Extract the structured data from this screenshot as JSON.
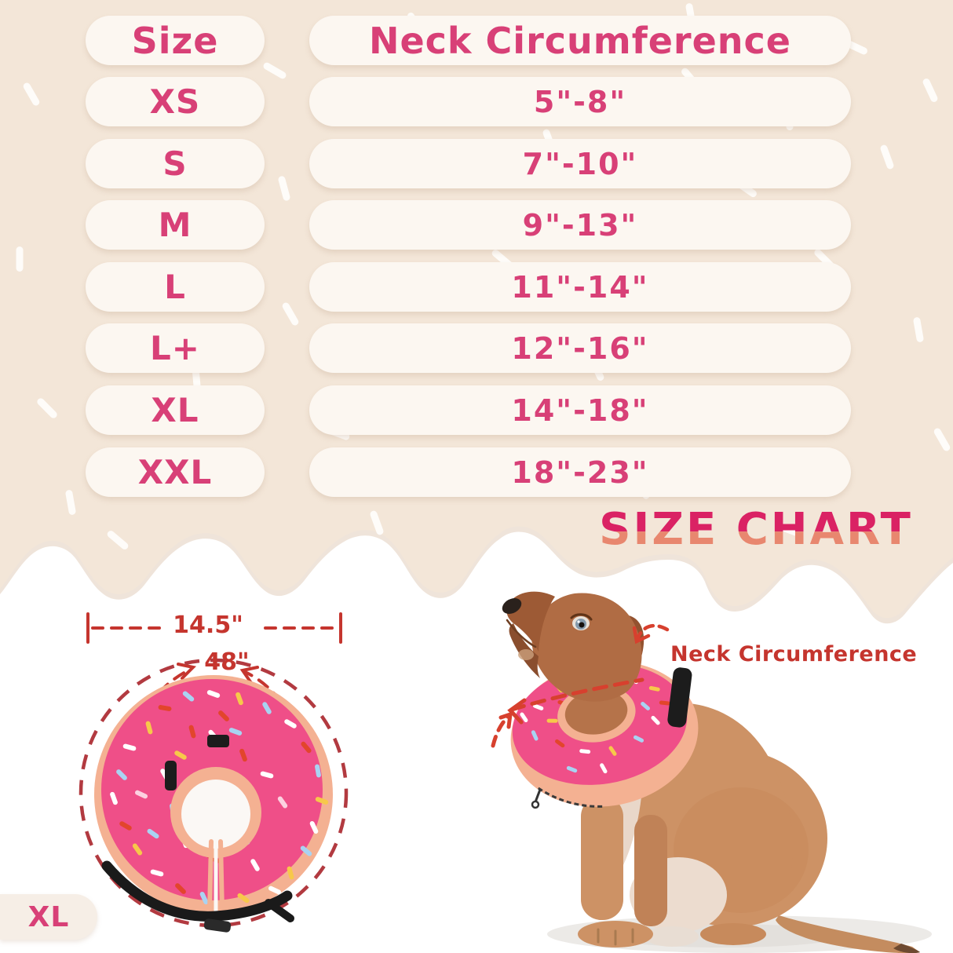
{
  "title": "SIZE CHART",
  "size_chart": {
    "headers": {
      "size": "Size",
      "neck": "Neck Circumference"
    },
    "rows": [
      {
        "size": "XS",
        "neck": "5\"-8\""
      },
      {
        "size": "S",
        "neck": "7\"-10\""
      },
      {
        "size": "M",
        "neck": "9\"-13\""
      },
      {
        "size": "L",
        "neck": "11\"-14\""
      },
      {
        "size": "L+",
        "neck": "12\"-16\""
      },
      {
        "size": "XL",
        "neck": "14\"-18\""
      },
      {
        "size": "XXL",
        "neck": "18\"-23\""
      }
    ]
  },
  "donut_diagram": {
    "diameter_label": "14.5\"",
    "circumference_label": "48\"",
    "size_badge": "XL"
  },
  "dog_figure": {
    "annotation": "Neck Circumference"
  },
  "colors": {
    "background_cream": "#f3e6d8",
    "pill_background": "#fcf7f1",
    "text_pink": "#d84077",
    "title_top": "#da2264",
    "title_bottom": "#e8876f",
    "annotation_red": "#c5352e",
    "donut_pink": "#ef4f88",
    "donut_rim_peach": "#f4b192",
    "dog_tan": "#cd9265"
  },
  "chart_data": {
    "type": "table",
    "title": "SIZE CHART",
    "columns": [
      "Size",
      "Neck Circumference"
    ],
    "rows": [
      [
        "XS",
        "5\"-8\""
      ],
      [
        "S",
        "7\"-10\""
      ],
      [
        "M",
        "9\"-13\""
      ],
      [
        "L",
        "11\"-14\""
      ],
      [
        "L+",
        "12\"-16\""
      ],
      [
        "XL",
        "14\"-18\""
      ],
      [
        "XXL",
        "18\"-23\""
      ]
    ]
  }
}
